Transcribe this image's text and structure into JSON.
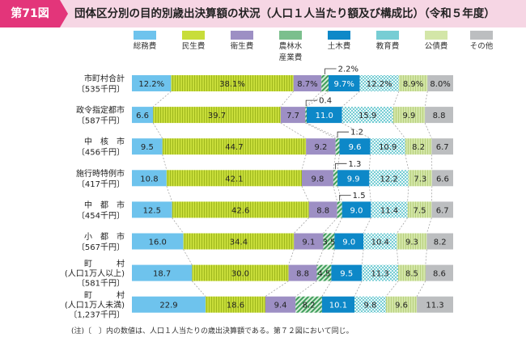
{
  "header": {
    "figure_no": "第71図",
    "title": "団体区分別の目的別歳出決算額の状況（人口１人当たり額及び構成比）（令和５年度）"
  },
  "colors": [
    "#6ec3ed",
    "#c8dd3a",
    "#9d8fc4",
    "#7bbf8d",
    "#0d88c8",
    "#77cdd4",
    "#d3e6a8",
    "#bcbec0"
  ],
  "note": "(注)〔　〕内の数値は、人口１人当たりの歳出決算額である。第７２図において同じ。",
  "chart_data": {
    "type": "stacked-bar-100",
    "orientation": "horizontal",
    "legend_placement": "top",
    "grid": false,
    "series": [
      {
        "name": "総務費",
        "lines": [
          "総務費"
        ]
      },
      {
        "name": "民生費",
        "lines": [
          "民生費"
        ]
      },
      {
        "name": "衛生費",
        "lines": [
          "衛生費"
        ]
      },
      {
        "name": "農林水産業費",
        "lines": [
          "農林水",
          "産業費"
        ]
      },
      {
        "name": "土木費",
        "lines": [
          "土木費"
        ]
      },
      {
        "name": "教育費",
        "lines": [
          "教育費"
        ]
      },
      {
        "name": "公債費",
        "lines": [
          "公債費"
        ]
      },
      {
        "name": "その他",
        "lines": [
          "その他"
        ]
      }
    ],
    "categories": [
      {
        "lines": [
          "市町村合計",
          "〔535千円〕"
        ],
        "values": [
          12.2,
          38.1,
          8.7,
          2.2,
          9.7,
          12.2,
          8.9,
          8.0
        ],
        "labels": [
          "12.2%",
          "38.1%",
          "8.7%",
          "",
          "9.7%",
          "12.2%",
          "8.9%",
          "8.0%"
        ],
        "callout": "2.2%"
      },
      {
        "lines": [
          "政令指定都市",
          "〔587千円〕"
        ],
        "values": [
          6.6,
          39.7,
          7.7,
          0.4,
          11.0,
          15.9,
          9.9,
          8.8
        ],
        "labels": [
          "6.6",
          "39.7",
          "7.7",
          "",
          "11.0",
          "15.9",
          "9.9",
          "8.8"
        ],
        "callout": "0.4"
      },
      {
        "lines": [
          "中　核　市",
          "〔456千円〕"
        ],
        "values": [
          9.5,
          44.7,
          9.2,
          1.2,
          9.6,
          10.9,
          8.2,
          6.7
        ],
        "labels": [
          "9.5",
          "44.7",
          "9.2",
          "",
          "9.6",
          "10.9",
          "8.2",
          "6.7"
        ],
        "callout": "1.2"
      },
      {
        "lines": [
          "施行時特例市",
          "〔417千円〕"
        ],
        "values": [
          10.8,
          42.1,
          9.8,
          1.3,
          9.9,
          12.2,
          7.3,
          6.6
        ],
        "labels": [
          "10.8",
          "42.1",
          "9.8",
          "",
          "9.9",
          "12.2",
          "7.3",
          "6.6"
        ],
        "callout": "1.3"
      },
      {
        "lines": [
          "中　都　市",
          "〔454千円〕"
        ],
        "values": [
          12.5,
          42.6,
          8.8,
          1.5,
          9.0,
          11.4,
          7.5,
          6.7
        ],
        "labels": [
          "12.5",
          "42.6",
          "8.8",
          "",
          "9.0",
          "11.4",
          "7.5",
          "6.7"
        ],
        "callout": "1.5"
      },
      {
        "lines": [
          "小　都　市",
          "〔567千円〕"
        ],
        "values": [
          16.0,
          34.4,
          9.1,
          3.5,
          9.0,
          10.4,
          9.3,
          8.2
        ],
        "labels": [
          "16.0",
          "34.4",
          "9.1",
          "3.5",
          "9.0",
          "10.4",
          "9.3",
          "8.2"
        ],
        "callout": ""
      },
      {
        "lines": [
          "町　　　村",
          "(人口1万人以上)",
          "〔581千円〕"
        ],
        "values": [
          18.7,
          30.0,
          8.8,
          4.5,
          9.5,
          11.3,
          8.5,
          8.6
        ],
        "labels": [
          "18.7",
          "30.0",
          "8.8",
          "4.5",
          "9.5",
          "11.3",
          "8.5",
          "8.6"
        ],
        "callout": ""
      },
      {
        "lines": [
          "町　　　村",
          "(人口1万人未満)",
          "〔1,237千円〕"
        ],
        "values": [
          22.9,
          18.6,
          9.4,
          8.2,
          10.1,
          9.8,
          9.6,
          11.3
        ],
        "labels": [
          "22.9",
          "18.6",
          "9.4",
          "8.2",
          "10.1",
          "9.8",
          "9.6",
          "11.3"
        ],
        "callout": ""
      }
    ]
  }
}
